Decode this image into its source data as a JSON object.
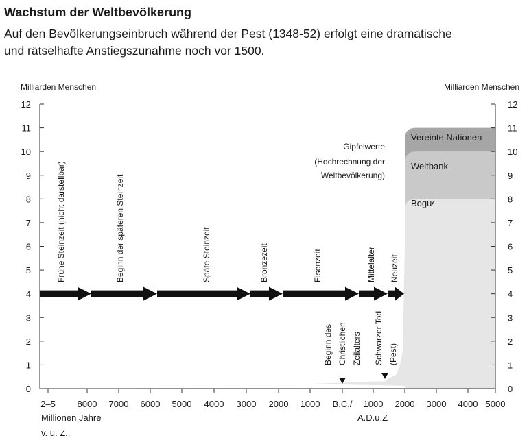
{
  "header": {
    "title": "Wachstum der Weltbevölkerung",
    "subtitle_line1": "Auf den Bevölkerungseinbruch während der Pest (1348-52) erfolgt eine dramatische",
    "subtitle_line2": "und rätselhafte Anstiegszunahme noch vor 1500."
  },
  "chart_data": {
    "type": "area",
    "ylabel_left": "Milliarden Menschen",
    "ylabel_right": "Milliarden Menschen",
    "ylim": [
      0,
      12
    ],
    "yticks": [
      0,
      1,
      2,
      3,
      4,
      5,
      6,
      7,
      8,
      9,
      10,
      11,
      12
    ],
    "xticks": [
      "2–5",
      "8000",
      "7000",
      "6000",
      "5000",
      "4000",
      "3000",
      "2000",
      "1000",
      "B.C./",
      "1000",
      "2000",
      "3000",
      "4000",
      "5000"
    ],
    "x_unit_left": [
      "Millionen Jahre",
      "v. u. Z.."
    ],
    "x_unit_right": "A.D.u.Z",
    "series": [
      {
        "x": [
          "2–5",
          "8000",
          "7000",
          "6000",
          "5000",
          "4000",
          "3000",
          "2000",
          "1000",
          "B.C./",
          "1000",
          "1348",
          "1500",
          "1700",
          "1800",
          "1900",
          "2000",
          "3000",
          "4000",
          "5000"
        ],
        "y": [
          0,
          0.01,
          0.01,
          0.02,
          0.03,
          0.05,
          0.08,
          0.12,
          0.2,
          0.25,
          0.3,
          0.3,
          0.45,
          0.6,
          1.0,
          1.6,
          6.1,
          8,
          8,
          8
        ]
      }
    ],
    "projections": [
      {
        "label": "Bogue und Tsui",
        "peak": 8
      },
      {
        "label": "Weltbank",
        "peak": 10
      },
      {
        "label": "Vereinte Nationen",
        "peak": 11
      }
    ],
    "projection_note": [
      "Gipfelwerte",
      "(Hochrechnung der",
      "Weltbevölkerung)"
    ],
    "epochs": [
      "Frühe Steinzeit (nicht darstellbar)",
      "Beginn der späteren Steinzeit",
      "Späte Steinzeit",
      "Bronzezeit",
      "Eisenzeit",
      "Mittelalter",
      "Neuzeit"
    ],
    "epoch_arrow_value": 4,
    "annotations": [
      {
        "lines": [
          "Beginn des",
          "Christlichen",
          "Zeilalters"
        ],
        "x": "B.C./"
      },
      {
        "lines": [
          "Schwarzer Tod",
          "(Pest)"
        ],
        "x": "1348"
      }
    ],
    "colors": {
      "arrow": "#111111",
      "population_area": "#e6e6e6",
      "bogue_tsui": "#e6e6e6",
      "weltbank": "#c9c9c9",
      "vereinte_nationen": "#a6a6a6"
    }
  }
}
